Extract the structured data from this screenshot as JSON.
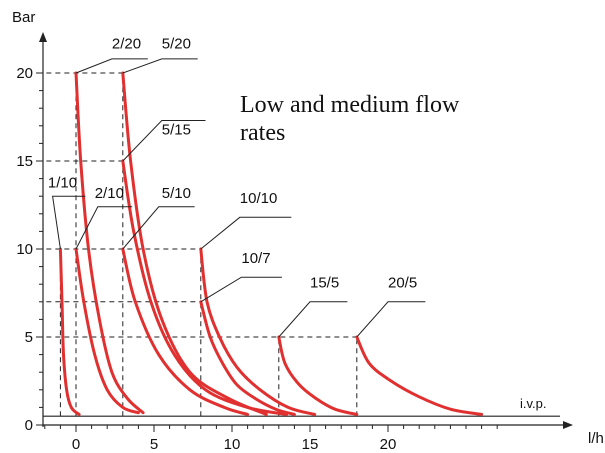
{
  "chart_data": {
    "type": "line",
    "title": "",
    "annotation": [
      "Low and medium flow",
      "rates"
    ],
    "xlabel": "l/h",
    "ylabel": "Bar",
    "xlim": [
      -2.5,
      28
    ],
    "ylim": [
      0,
      21
    ],
    "x_ticks": [
      0,
      5,
      10,
      15,
      20
    ],
    "y_ticks": [
      0,
      5,
      10,
      15,
      20
    ],
    "grid": false,
    "legend": "none",
    "reference_line": {
      "y": 0.5,
      "label": "i.v.p."
    },
    "series_color": "#e03030",
    "series": [
      {
        "name": "1/10",
        "points": [
          [
            -1,
            10
          ],
          [
            -0.9,
            7
          ],
          [
            -0.8,
            4
          ],
          [
            -0.6,
            2
          ],
          [
            -0.3,
            1
          ],
          [
            0.2,
            0.6
          ]
        ]
      },
      {
        "name": "2/10",
        "points": [
          [
            0,
            10
          ],
          [
            0.5,
            7
          ],
          [
            1.2,
            4
          ],
          [
            2,
            2
          ],
          [
            3,
            1
          ],
          [
            4,
            0.7
          ]
        ]
      },
      {
        "name": "2/20",
        "points": [
          [
            0,
            20
          ],
          [
            0.3,
            15
          ],
          [
            0.8,
            10
          ],
          [
            1.5,
            6
          ],
          [
            2.3,
            3
          ],
          [
            3.3,
            1.5
          ],
          [
            4.3,
            0.7
          ]
        ]
      },
      {
        "name": "5/10",
        "points": [
          [
            3,
            10
          ],
          [
            3.8,
            7
          ],
          [
            5.3,
            4
          ],
          [
            7.3,
            2
          ],
          [
            9.5,
            1
          ],
          [
            11,
            0.6
          ]
        ]
      },
      {
        "name": "5/15",
        "points": [
          [
            3,
            15
          ],
          [
            3.7,
            11
          ],
          [
            4.8,
            7
          ],
          [
            6.3,
            4
          ],
          [
            8.3,
            2
          ],
          [
            11,
            1
          ],
          [
            13.5,
            0.6
          ]
        ]
      },
      {
        "name": "5/20",
        "points": [
          [
            3,
            20
          ],
          [
            3.5,
            15
          ],
          [
            4.3,
            10
          ],
          [
            5.5,
            6
          ],
          [
            7.3,
            3
          ],
          [
            9.8,
            1.5
          ],
          [
            12.2,
            0.6
          ]
        ]
      },
      {
        "name": "10/7",
        "points": [
          [
            8,
            7
          ],
          [
            8.6,
            5
          ],
          [
            9.4,
            3.5
          ],
          [
            10.3,
            2.3
          ],
          [
            11.5,
            1.5
          ],
          [
            12.8,
            0.9
          ],
          [
            14,
            0.6
          ]
        ]
      },
      {
        "name": "10/10",
        "points": [
          [
            8,
            10
          ],
          [
            8.4,
            7
          ],
          [
            9.2,
            5
          ],
          [
            10.3,
            3.3
          ],
          [
            11.8,
            2
          ],
          [
            13.6,
            1
          ],
          [
            15.3,
            0.6
          ]
        ]
      },
      {
        "name": "15/5",
        "points": [
          [
            13,
            5
          ],
          [
            13.4,
            3.5
          ],
          [
            14.3,
            2.3
          ],
          [
            15.4,
            1.5
          ],
          [
            16.6,
            0.9
          ],
          [
            18,
            0.6
          ]
        ]
      },
      {
        "name": "20/5",
        "points": [
          [
            18,
            5
          ],
          [
            18.8,
            3.5
          ],
          [
            20.2,
            2.5
          ],
          [
            22,
            1.6
          ],
          [
            24,
            0.9
          ],
          [
            26,
            0.6
          ]
        ]
      }
    ],
    "guide_lines": [
      {
        "from": [
          -1.9,
          20
        ],
        "to": [
          3,
          20
        ]
      },
      {
        "from": [
          0,
          0.5
        ],
        "to": [
          0,
          20
        ]
      },
      {
        "from": [
          3,
          0.5
        ],
        "to": [
          3,
          20
        ]
      },
      {
        "from": [
          -1.9,
          15
        ],
        "to": [
          3,
          15
        ]
      },
      {
        "from": [
          -1.9,
          10
        ],
        "to": [
          8,
          10
        ]
      },
      {
        "from": [
          -1,
          0.5
        ],
        "to": [
          -1,
          10
        ]
      },
      {
        "from": [
          8,
          0.5
        ],
        "to": [
          8,
          10
        ]
      },
      {
        "from": [
          -1.9,
          7
        ],
        "to": [
          8,
          7
        ]
      },
      {
        "from": [
          -1.9,
          5
        ],
        "to": [
          18,
          5
        ]
      },
      {
        "from": [
          13,
          0.5
        ],
        "to": [
          13,
          5
        ]
      },
      {
        "from": [
          18,
          0.5
        ],
        "to": [
          18,
          5
        ]
      }
    ],
    "series_labels": [
      {
        "text": "2/20",
        "at": [
          2.3,
          21.4
        ],
        "leader": [
          [
            0,
            20
          ],
          [
            2.3,
            20.8
          ],
          [
            4.6,
            20.8
          ]
        ]
      },
      {
        "text": "5/20",
        "at": [
          5.5,
          21.4
        ],
        "leader": [
          [
            3,
            20
          ],
          [
            5.5,
            20.8
          ],
          [
            7.8,
            20.8
          ]
        ]
      },
      {
        "text": "5/15",
        "at": [
          5.5,
          16.5
        ],
        "leader": [
          [
            3,
            15
          ],
          [
            5.5,
            17.3
          ],
          [
            8.3,
            17.3
          ]
        ]
      },
      {
        "text": "1/10",
        "at": [
          -1.8,
          13.5
        ],
        "leader": [
          [
            -1,
            10
          ],
          [
            -1.5,
            13
          ],
          [
            0.6,
            13
          ]
        ]
      },
      {
        "text": "2/10",
        "at": [
          1.2,
          12.9
        ],
        "leader": [
          [
            0,
            10
          ],
          [
            1.4,
            12.4
          ],
          [
            3.6,
            12.4
          ]
        ]
      },
      {
        "text": "5/10",
        "at": [
          5.5,
          12.9
        ],
        "leader": [
          [
            3,
            10
          ],
          [
            5.3,
            12.4
          ],
          [
            7.6,
            12.4
          ]
        ]
      },
      {
        "text": "10/10",
        "at": [
          10.5,
          12.6
        ],
        "leader": [
          [
            8,
            10
          ],
          [
            10.5,
            11.8
          ],
          [
            13.8,
            11.8
          ]
        ]
      },
      {
        "text": "10/7",
        "at": [
          10.6,
          9.2
        ],
        "leader": [
          [
            8,
            7
          ],
          [
            10.6,
            8.4
          ],
          [
            13.2,
            8.4
          ]
        ]
      },
      {
        "text": "15/5",
        "at": [
          15,
          7.8
        ],
        "leader": [
          [
            13,
            5
          ],
          [
            15,
            7
          ],
          [
            17.4,
            7
          ]
        ]
      },
      {
        "text": "20/5",
        "at": [
          20,
          7.8
        ],
        "leader": [
          [
            18,
            5
          ],
          [
            20,
            7
          ],
          [
            22.4,
            7
          ]
        ]
      }
    ]
  }
}
